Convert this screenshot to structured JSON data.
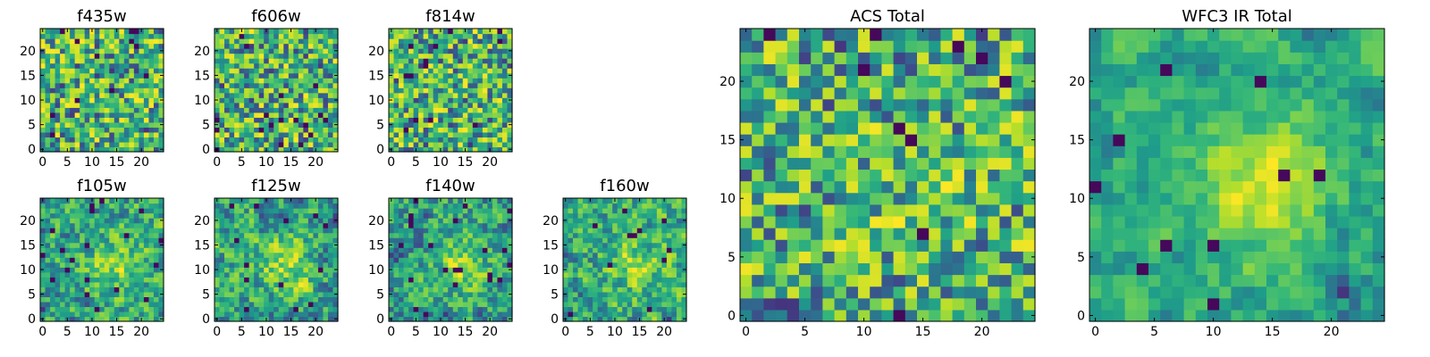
{
  "chart_data": [
    {
      "type": "heatmap",
      "title": "f435w",
      "xticks": [
        "0",
        "5",
        "10",
        "15",
        "20"
      ],
      "yticks": [
        "0",
        "5",
        "10",
        "15",
        "20"
      ],
      "xlim": [
        0,
        25
      ],
      "ylim": [
        0,
        25
      ],
      "grid": false,
      "colormap": "viridis",
      "smooth": 0.0,
      "blob": 0.0,
      "seed": 11
    },
    {
      "type": "heatmap",
      "title": "f606w",
      "xticks": [
        "0",
        "5",
        "10",
        "15",
        "20"
      ],
      "yticks": [
        "0",
        "5",
        "10",
        "15",
        "20"
      ],
      "xlim": [
        0,
        25
      ],
      "ylim": [
        0,
        25
      ],
      "grid": false,
      "colormap": "viridis",
      "smooth": 0.0,
      "blob": 0.0,
      "seed": 23
    },
    {
      "type": "heatmap",
      "title": "f814w",
      "xticks": [
        "0",
        "5",
        "10",
        "15",
        "20"
      ],
      "yticks": [
        "0",
        "5",
        "10",
        "15",
        "20"
      ],
      "xlim": [
        0,
        25
      ],
      "ylim": [
        0,
        25
      ],
      "grid": false,
      "colormap": "viridis",
      "smooth": 0.0,
      "blob": 0.0,
      "seed": 37
    },
    {
      "type": "heatmap",
      "title": "f105w",
      "xticks": [
        "0",
        "5",
        "10",
        "15",
        "20"
      ],
      "yticks": [
        "0",
        "5",
        "10",
        "15",
        "20"
      ],
      "xlim": [
        0,
        25
      ],
      "ylim": [
        0,
        25
      ],
      "grid": false,
      "colormap": "viridis",
      "smooth": 0.45,
      "blob": 0.35,
      "seed": 41
    },
    {
      "type": "heatmap",
      "title": "f125w",
      "xticks": [
        "0",
        "5",
        "10",
        "15",
        "20"
      ],
      "yticks": [
        "0",
        "5",
        "10",
        "15",
        "20"
      ],
      "xlim": [
        0,
        25
      ],
      "ylim": [
        0,
        25
      ],
      "grid": false,
      "colormap": "viridis",
      "smooth": 0.45,
      "blob": 0.35,
      "seed": 53
    },
    {
      "type": "heatmap",
      "title": "f140w",
      "xticks": [
        "0",
        "5",
        "10",
        "15",
        "20"
      ],
      "yticks": [
        "0",
        "5",
        "10",
        "15",
        "20"
      ],
      "xlim": [
        0,
        25
      ],
      "ylim": [
        0,
        25
      ],
      "grid": false,
      "colormap": "viridis",
      "smooth": 0.45,
      "blob": 0.35,
      "seed": 67
    },
    {
      "type": "heatmap",
      "title": "f160w",
      "xticks": [
        "0",
        "5",
        "10",
        "15",
        "20"
      ],
      "yticks": [
        "0",
        "5",
        "10",
        "15",
        "20"
      ],
      "xlim": [
        0,
        25
      ],
      "ylim": [
        0,
        25
      ],
      "grid": false,
      "colormap": "viridis",
      "smooth": 0.45,
      "blob": 0.3,
      "seed": 79
    },
    {
      "type": "heatmap",
      "title": "ACS Total",
      "xticks": [
        "0",
        "5",
        "10",
        "15",
        "20"
      ],
      "yticks": [
        "0",
        "5",
        "10",
        "15",
        "20"
      ],
      "xlim": [
        0,
        25
      ],
      "ylim": [
        0,
        25
      ],
      "grid": false,
      "colormap": "viridis",
      "smooth": 0.1,
      "blob": 0.05,
      "seed": 97
    },
    {
      "type": "heatmap",
      "title": "WFC3 IR Total",
      "xticks": [
        "0",
        "5",
        "10",
        "15",
        "20"
      ],
      "yticks": [
        "0",
        "5",
        "10",
        "15",
        "20"
      ],
      "xlim": [
        0,
        25
      ],
      "ylim": [
        0,
        25
      ],
      "grid": false,
      "colormap": "viridis",
      "smooth": 0.65,
      "blob": 0.55,
      "seed": 113
    }
  ]
}
